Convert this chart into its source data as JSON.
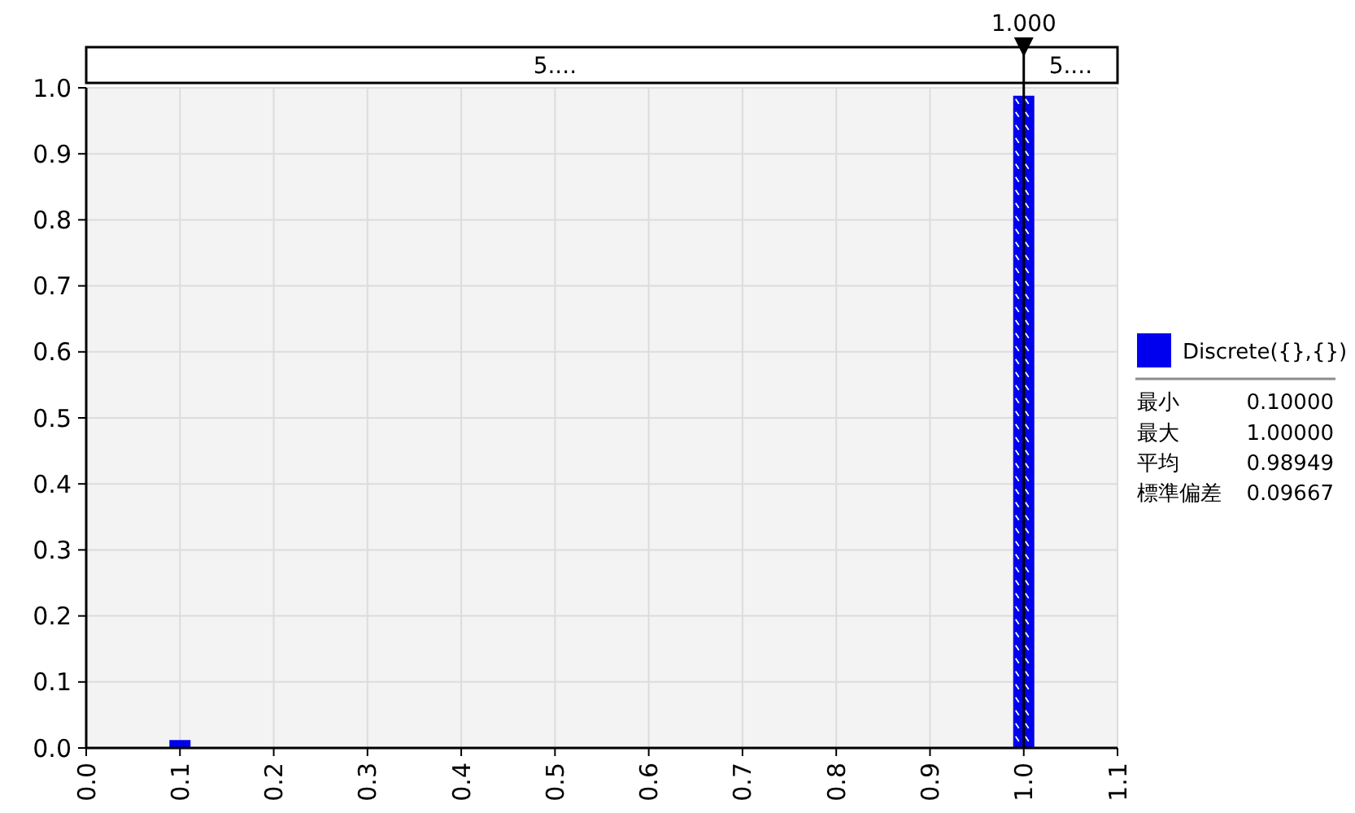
{
  "chart_data": {
    "type": "bar",
    "x": [
      0.1,
      1.0
    ],
    "series": [
      {
        "name": "Discrete({},{})",
        "color": "#0000ee",
        "values": [
          0.012,
          0.988
        ]
      }
    ],
    "xlim": [
      0,
      1.1
    ],
    "xticks": [
      {
        "value": 0,
        "label": "0.0"
      },
      0.1,
      0.2,
      0.3,
      0.4,
      0.5,
      0.6,
      0.7,
      0.8,
      0.9,
      {
        "value": 1,
        "label": "1.0"
      },
      1.1
    ],
    "ylim": [
      0,
      1
    ],
    "yticks": [
      {
        "value": 0,
        "label": "0.0"
      },
      0.1,
      0.2,
      0.3,
      0.4,
      0.5,
      0.6,
      0.7,
      0.8,
      0.9,
      {
        "value": 1,
        "label": "1.0"
      }
    ],
    "ref_lines": [
      {
        "axis": "x",
        "value": 1.0,
        "label": "1.000",
        "color": "#000000"
      }
    ],
    "annotations": [
      "5....",
      "5....",
      "最小",
      "0.10000",
      "最大",
      "1.00000",
      "平均",
      "0.98949",
      "標準偏差",
      "0.09667"
    ],
    "grid": true,
    "legend": "right"
  }
}
